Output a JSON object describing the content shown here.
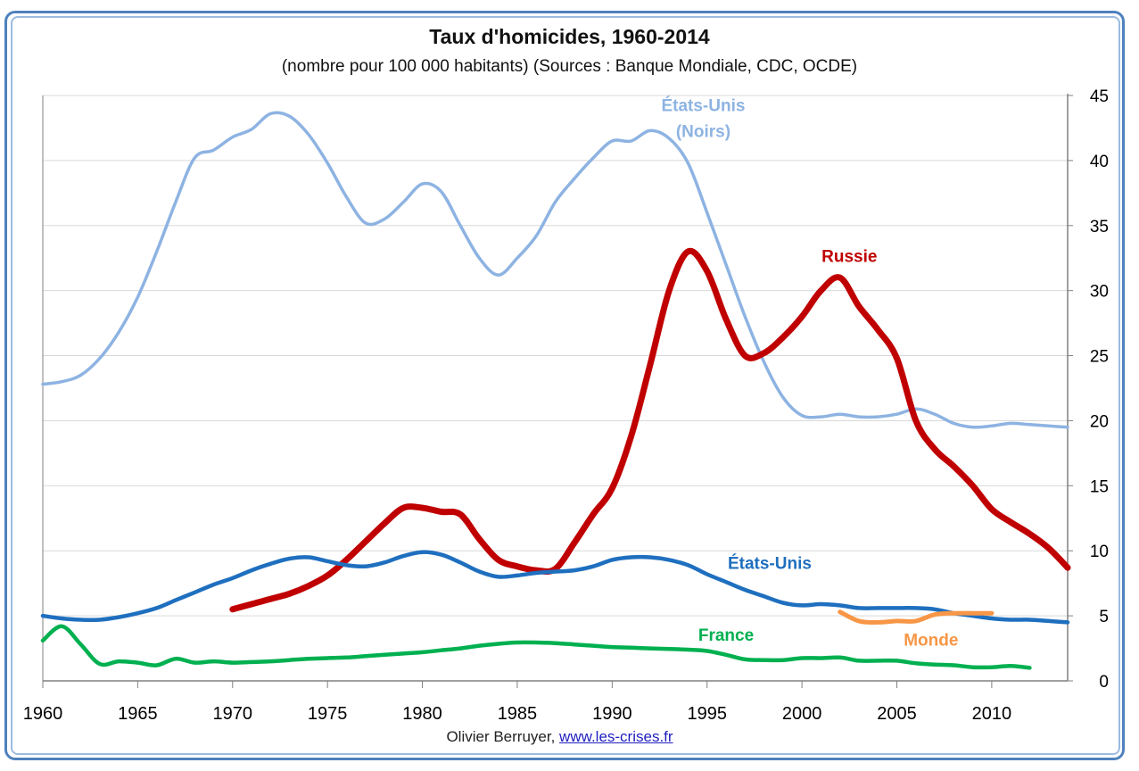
{
  "chart_data": {
    "type": "line",
    "title": "Taux d'homicides, 1960-2014",
    "subtitle": "(nombre pour 100 000 habitants) (Sources : Banque Mondiale,  CDC, OCDE)",
    "xlim": [
      1960,
      2014
    ],
    "ylim": [
      0,
      45
    ],
    "x_ticks": [
      1960,
      1965,
      1970,
      1975,
      1980,
      1985,
      1990,
      1995,
      2000,
      2005,
      2010
    ],
    "y_ticks": [
      0,
      5,
      10,
      15,
      20,
      25,
      30,
      35,
      40,
      45
    ],
    "y_axis_side": "right",
    "grid": true,
    "legend": "inline labels",
    "series": [
      {
        "name": "États-Unis\n(Noirs)",
        "label_lines": [
          "États-Unis",
          "(Noirs)"
        ],
        "color": "#8db3e2",
        "x": [
          1960,
          1961,
          1962,
          1963,
          1964,
          1965,
          1966,
          1967,
          1968,
          1969,
          1970,
          1971,
          1972,
          1973,
          1974,
          1975,
          1976,
          1977,
          1978,
          1979,
          1980,
          1981,
          1982,
          1983,
          1984,
          1985,
          1986,
          1987,
          1988,
          1989,
          1990,
          1991,
          1992,
          1993,
          1994,
          1995,
          1996,
          1997,
          1998,
          1999,
          2000,
          2001,
          2002,
          2003,
          2004,
          2005,
          2006,
          2007,
          2008,
          2009,
          2010,
          2011,
          2012,
          2013,
          2014
        ],
        "values": [
          22.8,
          23.0,
          23.5,
          24.8,
          26.8,
          29.5,
          33.0,
          36.8,
          40.2,
          40.8,
          41.8,
          42.4,
          43.6,
          43.4,
          42.0,
          39.8,
          37.2,
          35.2,
          35.5,
          36.8,
          38.2,
          37.6,
          35.0,
          32.5,
          31.2,
          32.5,
          34.2,
          36.8,
          38.6,
          40.2,
          41.5,
          41.5,
          42.3,
          41.7,
          39.8,
          36.0,
          32.0,
          28.0,
          24.5,
          21.8,
          20.4,
          20.3,
          20.5,
          20.3,
          20.3,
          20.5,
          20.9,
          20.5,
          19.8,
          19.5,
          19.6,
          19.8,
          19.7,
          19.6,
          19.5
        ]
      },
      {
        "name": "Russie",
        "color": "#c00000",
        "x": [
          1970,
          1971,
          1972,
          1973,
          1974,
          1975,
          1976,
          1977,
          1978,
          1979,
          1980,
          1981,
          1982,
          1983,
          1984,
          1985,
          1986,
          1987,
          1988,
          1989,
          1990,
          1991,
          1992,
          1993,
          1994,
          1995,
          1996,
          1997,
          1998,
          1999,
          2000,
          2001,
          2002,
          2003,
          2004,
          2005,
          2006,
          2007,
          2008,
          2009,
          2010,
          2011,
          2012,
          2013,
          2014
        ],
        "values": [
          5.5,
          5.9,
          6.3,
          6.7,
          7.3,
          8.1,
          9.3,
          10.7,
          12.1,
          13.3,
          13.3,
          13.0,
          12.8,
          10.9,
          9.3,
          8.8,
          8.5,
          8.6,
          10.6,
          12.8,
          14.8,
          18.8,
          24.3,
          30.0,
          33.0,
          31.5,
          27.8,
          25.0,
          25.2,
          26.4,
          28.0,
          30.0,
          31.0,
          28.8,
          27.0,
          24.8,
          20.0,
          17.8,
          16.5,
          15.0,
          13.2,
          12.2,
          11.3,
          10.2,
          8.7
        ]
      },
      {
        "name": "États-Unis",
        "color": "#1f6fbf",
        "x": [
          1960,
          1961,
          1962,
          1963,
          1964,
          1965,
          1966,
          1967,
          1968,
          1969,
          1970,
          1971,
          1972,
          1973,
          1974,
          1975,
          1976,
          1977,
          1978,
          1979,
          1980,
          1981,
          1982,
          1983,
          1984,
          1985,
          1986,
          1987,
          1988,
          1989,
          1990,
          1991,
          1992,
          1993,
          1994,
          1995,
          1996,
          1997,
          1998,
          1999,
          2000,
          2001,
          2002,
          2003,
          2004,
          2005,
          2006,
          2007,
          2008,
          2009,
          2010,
          2011,
          2012,
          2013,
          2014
        ],
        "values": [
          5.0,
          4.8,
          4.7,
          4.7,
          4.9,
          5.2,
          5.6,
          6.2,
          6.8,
          7.4,
          7.9,
          8.5,
          9.0,
          9.4,
          9.5,
          9.2,
          8.9,
          8.8,
          9.1,
          9.6,
          9.9,
          9.7,
          9.1,
          8.4,
          8.0,
          8.1,
          8.3,
          8.4,
          8.5,
          8.8,
          9.3,
          9.5,
          9.5,
          9.3,
          8.9,
          8.2,
          7.6,
          7.0,
          6.5,
          6.0,
          5.8,
          5.9,
          5.8,
          5.6,
          5.6,
          5.6,
          5.6,
          5.5,
          5.2,
          5.0,
          4.8,
          4.7,
          4.7,
          4.6,
          4.5
        ]
      },
      {
        "name": "Monde",
        "color": "#f79646",
        "x": [
          2002,
          2003,
          2004,
          2005,
          2006,
          2007,
          2008,
          2009,
          2010
        ],
        "values": [
          5.3,
          4.6,
          4.5,
          4.6,
          4.6,
          5.1,
          5.2,
          5.2,
          5.2
        ]
      },
      {
        "name": "France",
        "color": "#00b050",
        "x": [
          1960,
          1961,
          1962,
          1963,
          1964,
          1965,
          1966,
          1967,
          1968,
          1969,
          1970,
          1971,
          1972,
          1973,
          1974,
          1975,
          1976,
          1977,
          1978,
          1979,
          1980,
          1981,
          1982,
          1983,
          1984,
          1985,
          1986,
          1987,
          1988,
          1989,
          1990,
          1991,
          1992,
          1993,
          1994,
          1995,
          1996,
          1997,
          1998,
          1999,
          2000,
          2001,
          2002,
          2003,
          2004,
          2005,
          2006,
          2007,
          2008,
          2009,
          2010,
          2011,
          2012
        ],
        "values": [
          3.1,
          4.2,
          2.8,
          1.3,
          1.5,
          1.4,
          1.2,
          1.7,
          1.4,
          1.5,
          1.4,
          1.45,
          1.5,
          1.6,
          1.7,
          1.75,
          1.8,
          1.9,
          2.0,
          2.1,
          2.2,
          2.35,
          2.5,
          2.7,
          2.85,
          2.95,
          2.95,
          2.9,
          2.8,
          2.7,
          2.6,
          2.55,
          2.5,
          2.45,
          2.4,
          2.3,
          2.0,
          1.65,
          1.6,
          1.6,
          1.75,
          1.75,
          1.8,
          1.55,
          1.55,
          1.55,
          1.35,
          1.25,
          1.2,
          1.05,
          1.05,
          1.15,
          1.0
        ]
      }
    ]
  },
  "credit": {
    "author": "Olivier Berruyer,",
    "link": "www.les-crises.fr"
  }
}
